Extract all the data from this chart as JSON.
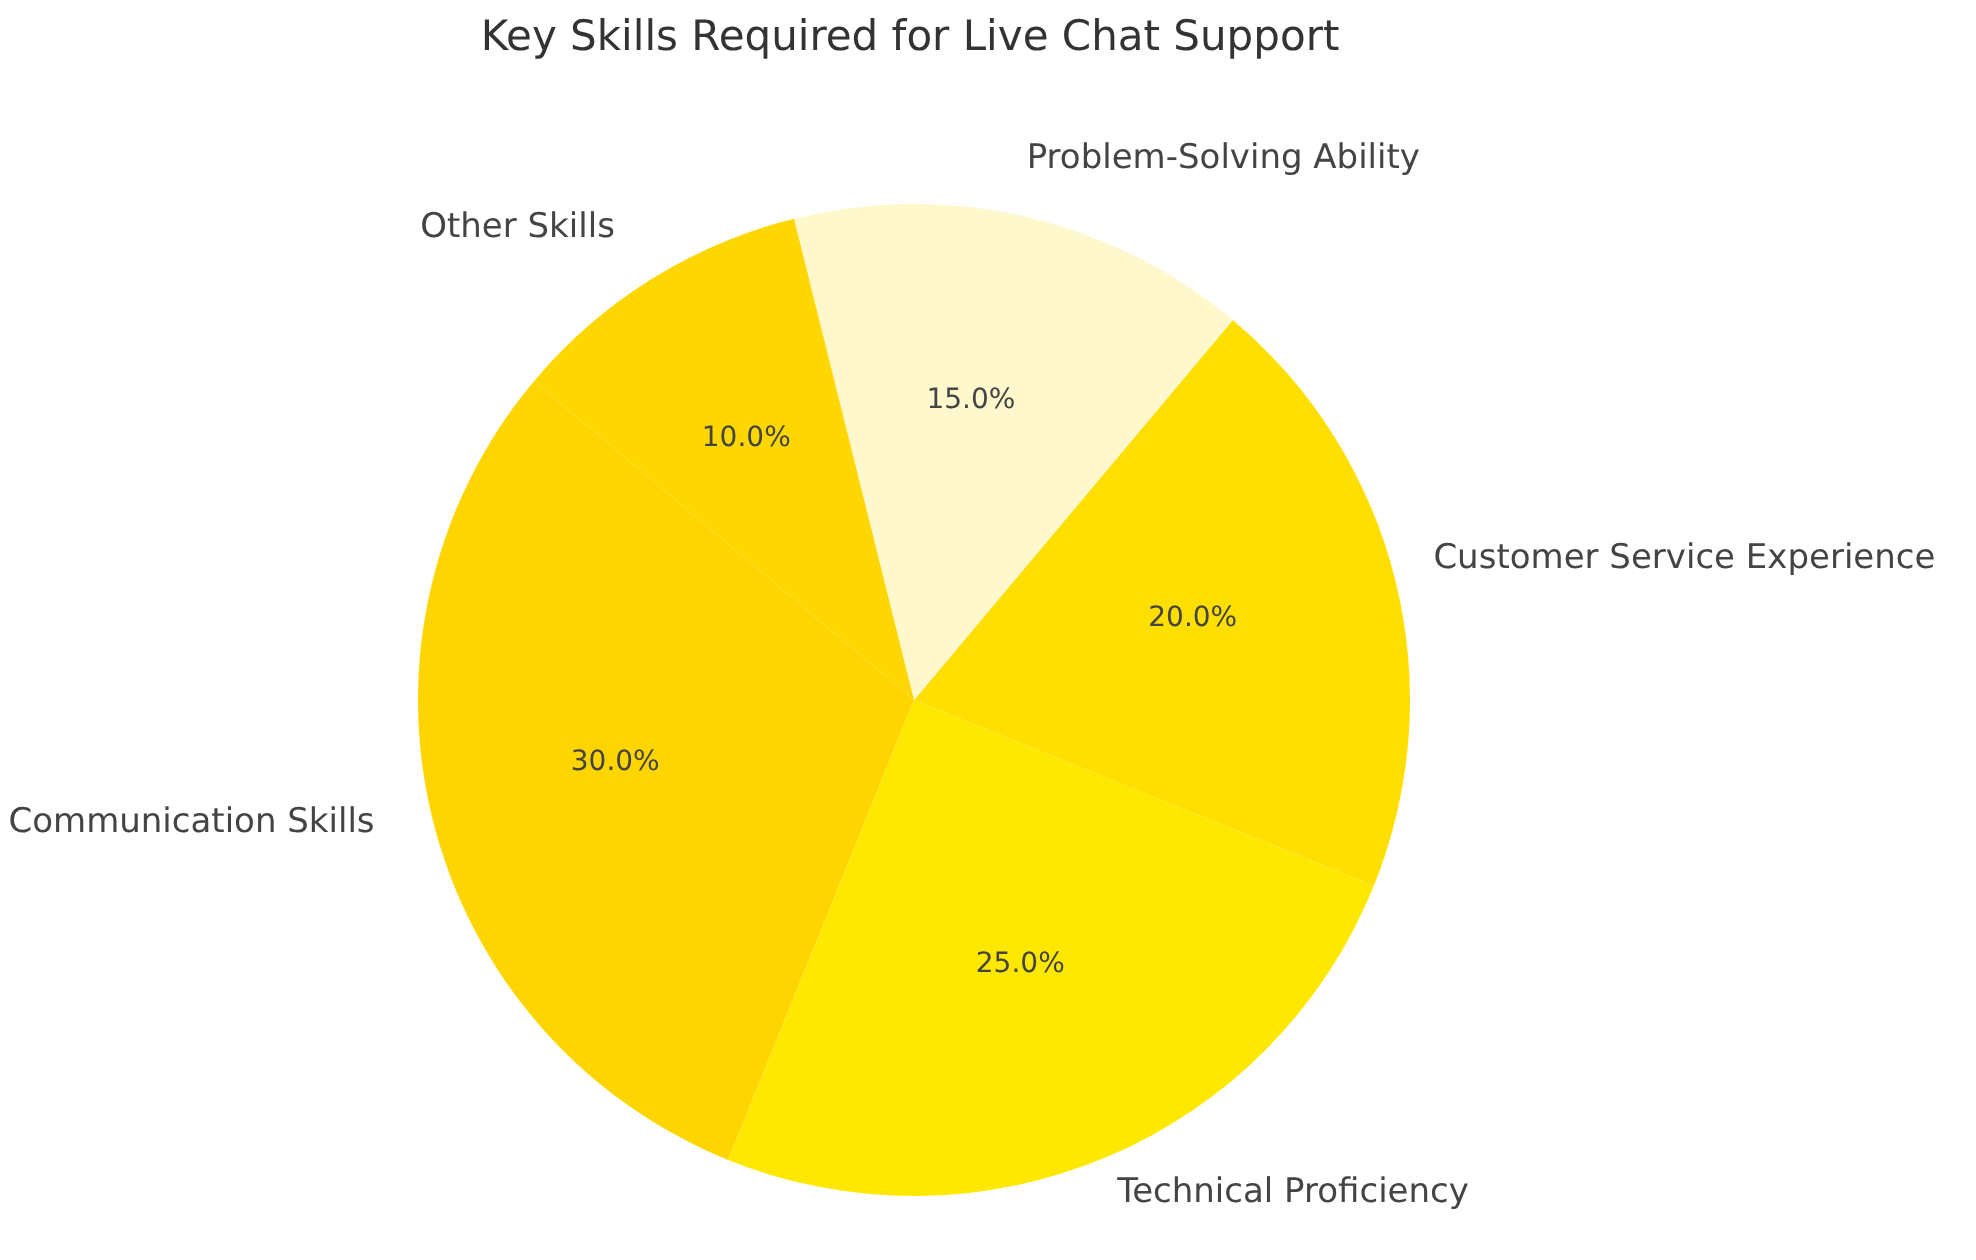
{
  "chart_data": {
    "type": "pie",
    "title": "Key Skills Required for Live Chat Support",
    "categories": [
      "Communication Skills",
      "Technical Proficiency",
      "Customer Service Experience",
      "Problem-Solving Ability",
      "Other Skills"
    ],
    "values": [
      30,
      25,
      20,
      15,
      10
    ],
    "value_labels": [
      "30.0%",
      "25.0%",
      "20.0%",
      "15.0%",
      "10.0%"
    ],
    "colors": [
      "#ffd500",
      "#ffe800",
      "#ffdf00",
      "#fff8cc",
      "#ffd700"
    ]
  }
}
